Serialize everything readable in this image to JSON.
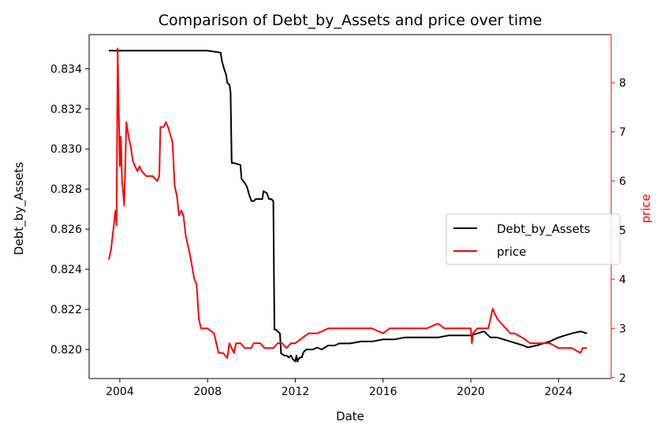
{
  "chart_data": {
    "type": "line",
    "title": "Comparison of Debt_by_Assets and price over time",
    "xlabel": "Date",
    "ylabel_left": "Debt_by_Assets",
    "ylabel_right": "price",
    "x_ticks": [
      "2004",
      "2008",
      "2012",
      "2016",
      "2020",
      "2024"
    ],
    "y_left_ticks": [
      "0.820",
      "0.822",
      "0.824",
      "0.826",
      "0.828",
      "0.830",
      "0.832",
      "0.834"
    ],
    "y_right_ticks": [
      "2",
      "3",
      "4",
      "5",
      "6",
      "7",
      "8"
    ],
    "xlim": [
      2002.6,
      2026.4
    ],
    "ylim_left": [
      0.81855,
      0.8357
    ],
    "ylim_right": [
      1.98,
      8.98
    ],
    "legend_position": "center-right",
    "colors": {
      "Debt_by_Assets": "#000000",
      "price": "#ff0000",
      "right_axis": "#ff0000"
    },
    "series": [
      {
        "name": "Debt_by_Assets",
        "axis": "left",
        "x": [
          2003.5,
          2004.0,
          2005.0,
          2006.0,
          2007.0,
          2007.9,
          2008.0,
          2008.6,
          2008.65,
          2008.75,
          2008.85,
          2008.9,
          2009.0,
          2009.05,
          2009.1,
          2009.2,
          2009.5,
          2009.55,
          2009.7,
          2009.8,
          2009.9,
          2010.0,
          2010.1,
          2010.2,
          2010.5,
          2010.55,
          2010.7,
          2010.8,
          2010.9,
          2011.0,
          2011.05,
          2011.1,
          2011.3,
          2011.35,
          2011.5,
          2011.6,
          2011.7,
          2011.8,
          2011.9,
          2012.0,
          2012.05,
          2012.1,
          2012.2,
          2012.3,
          2012.35,
          2012.4,
          2012.5,
          2012.6,
          2012.8,
          2013.0,
          2013.2,
          2013.5,
          2013.8,
          2014.0,
          2014.5,
          2015.0,
          2015.5,
          2016.0,
          2016.5,
          2017.0,
          2017.5,
          2018.0,
          2018.5,
          2019.0,
          2019.5,
          2020.0,
          2020.3,
          2020.6,
          2020.9,
          2021.2,
          2021.5,
          2021.8,
          2022.1,
          2022.4,
          2022.6,
          2023.0,
          2023.3,
          2023.6,
          2024.0,
          2024.3,
          2024.6,
          2025.0,
          2025.3
        ],
        "y": [
          0.8349,
          0.8349,
          0.8349,
          0.8349,
          0.8349,
          0.8349,
          0.8349,
          0.8348,
          0.8344,
          0.834,
          0.8337,
          0.8333,
          0.8332,
          0.8328,
          0.8293,
          0.8293,
          0.8292,
          0.8285,
          0.8283,
          0.8281,
          0.8277,
          0.8274,
          0.8274,
          0.8275,
          0.8275,
          0.8279,
          0.8278,
          0.8275,
          0.8275,
          0.8274,
          0.821,
          0.821,
          0.8208,
          0.8198,
          0.8197,
          0.8197,
          0.8196,
          0.8197,
          0.8195,
          0.8194,
          0.8197,
          0.8194,
          0.8196,
          0.8196,
          0.8198,
          0.8199,
          0.82,
          0.82,
          0.82,
          0.8201,
          0.82,
          0.8202,
          0.8202,
          0.8203,
          0.8203,
          0.8204,
          0.8204,
          0.8205,
          0.8205,
          0.8206,
          0.8206,
          0.8206,
          0.8206,
          0.8207,
          0.8207,
          0.8207,
          0.8208,
          0.8209,
          0.8206,
          0.8206,
          0.8205,
          0.8204,
          0.8203,
          0.8202,
          0.8201,
          0.8202,
          0.8203,
          0.8204,
          0.8206,
          0.8207,
          0.8208,
          0.8209,
          0.8208
        ]
      },
      {
        "name": "price",
        "axis": "right",
        "x": [
          2003.5,
          2003.6,
          2003.75,
          2003.8,
          2003.85,
          2003.9,
          2004.0,
          2004.05,
          2004.1,
          2004.15,
          2004.2,
          2004.3,
          2004.4,
          2004.5,
          2004.6,
          2004.7,
          2004.8,
          2004.9,
          2005.0,
          2005.2,
          2005.5,
          2005.7,
          2005.8,
          2005.85,
          2006.0,
          2006.1,
          2006.2,
          2006.4,
          2006.5,
          2006.6,
          2006.7,
          2006.8,
          2006.9,
          2007.0,
          2007.2,
          2007.4,
          2007.5,
          2007.6,
          2007.7,
          2007.8,
          2007.9,
          2008.0,
          2008.3,
          2008.5,
          2008.7,
          2008.9,
          2009.0,
          2009.1,
          2009.2,
          2009.3,
          2009.5,
          2009.7,
          2010.0,
          2010.1,
          2010.2,
          2010.4,
          2010.6,
          2010.8,
          2011.0,
          2011.2,
          2011.4,
          2011.6,
          2011.8,
          2012.0,
          2012.3,
          2012.6,
          2013.0,
          2013.5,
          2014.0,
          2014.5,
          2015.0,
          2015.5,
          2016.0,
          2016.3,
          2016.6,
          2017.0,
          2017.5,
          2018.0,
          2018.5,
          2018.8,
          2019.0,
          2019.4,
          2019.7,
          2020.0,
          2020.05,
          2020.1,
          2020.3,
          2020.6,
          2020.8,
          2021.0,
          2021.2,
          2021.4,
          2021.6,
          2021.8,
          2022.0,
          2022.4,
          2022.7,
          2023.0,
          2023.3,
          2023.6,
          2024.0,
          2024.3,
          2024.6,
          2025.0,
          2025.1,
          2025.2,
          2025.3
        ],
        "y": [
          4.4,
          4.6,
          5.2,
          5.4,
          5.1,
          8.7,
          6.3,
          6.9,
          6.0,
          5.8,
          5.5,
          7.2,
          6.9,
          6.7,
          6.4,
          6.3,
          6.2,
          6.3,
          6.2,
          6.1,
          6.1,
          6.0,
          6.1,
          7.1,
          7.1,
          7.2,
          7.1,
          6.8,
          5.9,
          5.7,
          5.3,
          5.4,
          5.3,
          4.9,
          4.5,
          4.0,
          3.9,
          3.2,
          3.0,
          3.0,
          3.0,
          3.0,
          2.9,
          2.5,
          2.5,
          2.4,
          2.7,
          2.6,
          2.5,
          2.7,
          2.7,
          2.6,
          2.6,
          2.7,
          2.7,
          2.7,
          2.6,
          2.6,
          2.6,
          2.7,
          2.7,
          2.6,
          2.7,
          2.7,
          2.8,
          2.9,
          2.9,
          3.0,
          3.0,
          3.0,
          3.0,
          3.0,
          2.9,
          3.0,
          3.0,
          3.0,
          3.0,
          3.0,
          3.1,
          3.0,
          3.0,
          3.0,
          3.0,
          3.0,
          2.7,
          2.9,
          3.0,
          3.0,
          3.0,
          3.4,
          3.2,
          3.1,
          3.0,
          2.9,
          2.9,
          2.8,
          2.7,
          2.7,
          2.7,
          2.7,
          2.6,
          2.6,
          2.6,
          2.5,
          2.6,
          2.6,
          2.6
        ]
      }
    ]
  }
}
